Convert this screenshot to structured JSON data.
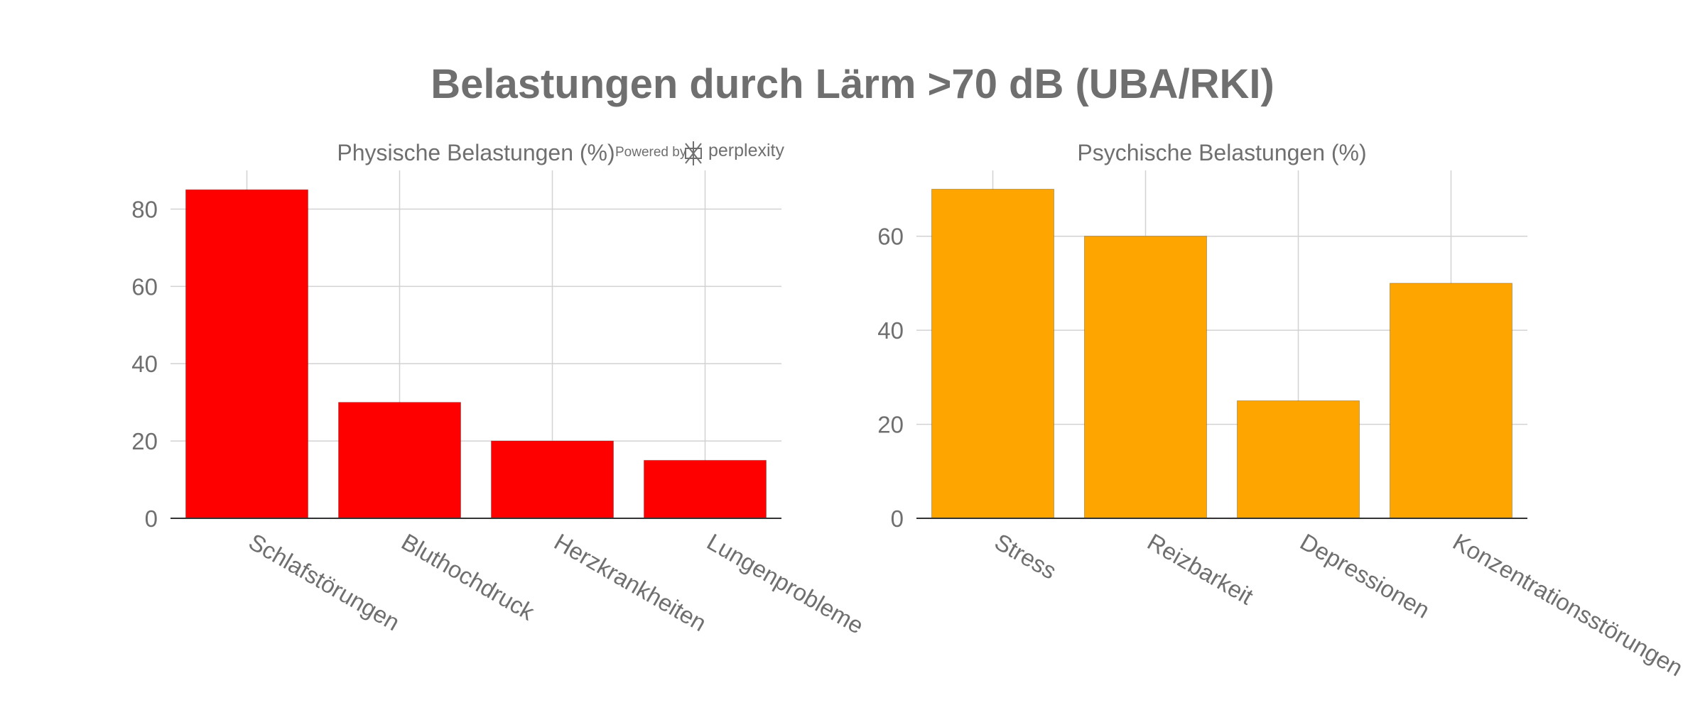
{
  "title": "Belastungen durch Lärm >70 dB (UBA/RKI)",
  "watermark": {
    "prefix": "Powered by",
    "brand": "perplexity"
  },
  "chart_data": [
    {
      "type": "bar",
      "title": "Physische Belastungen (%)",
      "categories": [
        "Schlafstörungen",
        "Bluthochdruck",
        "Herzkrankheiten",
        "Lungenprobleme"
      ],
      "values": [
        85,
        30,
        20,
        15
      ],
      "ylim": [
        0,
        90
      ],
      "yticks": [
        0,
        20,
        40,
        60,
        80
      ],
      "color": "#ff0000",
      "grid": true
    },
    {
      "type": "bar",
      "title": "Psychische Belastungen (%)",
      "categories": [
        "Stress",
        "Reizbarkeit",
        "Depressionen",
        "Konzentrationsstörungen"
      ],
      "values": [
        70,
        60,
        25,
        50
      ],
      "ylim": [
        0,
        74
      ],
      "yticks": [
        0,
        20,
        40,
        60
      ],
      "color": "#ffa500",
      "grid": true
    }
  ]
}
